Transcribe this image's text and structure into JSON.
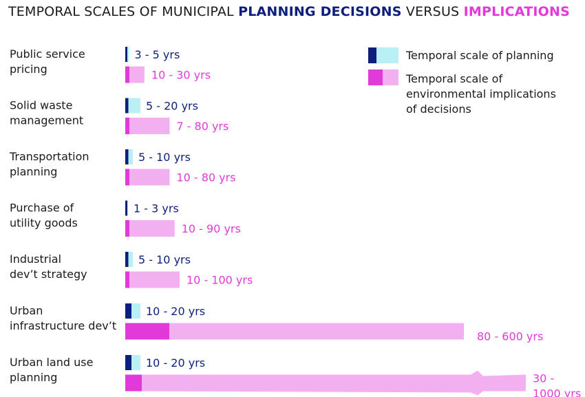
{
  "colors": {
    "plan_dark": "#0d1f7a",
    "plan_light": "#b8f0f6",
    "env_dark": "#e23ad8",
    "env_light": "#f3b0f0",
    "text": "#1a1a1a"
  },
  "chart_data": {
    "type": "bar",
    "title": {
      "prefix": "TEMPORAL SCALES OF MUNICIPAL ",
      "bold1": "PLANNING DECISIONS",
      "middle": " VERSUS ",
      "bold2": "IMPLICATIONS"
    },
    "unit": "yrs",
    "axis_break_at": 600,
    "categories": [
      [
        "Public service",
        "pricing"
      ],
      [
        "Solid waste",
        "management"
      ],
      [
        "Transportation",
        "planning"
      ],
      [
        "Purchase of",
        "utility goods"
      ],
      [
        "Industrial",
        "dev’t strategy"
      ],
      [
        "Urban",
        "infrastructure dev’t"
      ],
      [
        "Urban land use",
        "planning"
      ]
    ],
    "series": [
      {
        "name": "Temporal scale of planning",
        "ranges": [
          [
            3,
            5
          ],
          [
            5,
            20
          ],
          [
            5,
            10
          ],
          [
            1,
            3
          ],
          [
            5,
            10
          ],
          [
            10,
            20
          ],
          [
            10,
            20
          ]
        ],
        "labels": [
          "3 - 5 yrs",
          "5 - 20 yrs",
          "5 - 10 yrs",
          "1 - 3 yrs",
          "5 - 10 yrs",
          "10 - 20 yrs",
          "10 - 20 yrs"
        ]
      },
      {
        "name": "Temporal scale of environmental implications of decisions",
        "ranges": [
          [
            10,
            30
          ],
          [
            7,
            80
          ],
          [
            10,
            80
          ],
          [
            10,
            90
          ],
          [
            10,
            100
          ],
          [
            80,
            600
          ],
          [
            30,
            1000
          ]
        ],
        "labels": [
          "10 - 30 yrs",
          "7 - 80 yrs",
          "10 - 80 yrs",
          "10 - 90 yrs",
          "10 - 100 yrs",
          "80 - 600 yrs",
          "30 - 1000 yrs"
        ]
      }
    ],
    "legend": {
      "position": "top-right",
      "entries": [
        [
          "Temporal scale of planning"
        ],
        [
          "Temporal scale of",
          "environmental implications",
          "of decisions"
        ]
      ]
    }
  }
}
